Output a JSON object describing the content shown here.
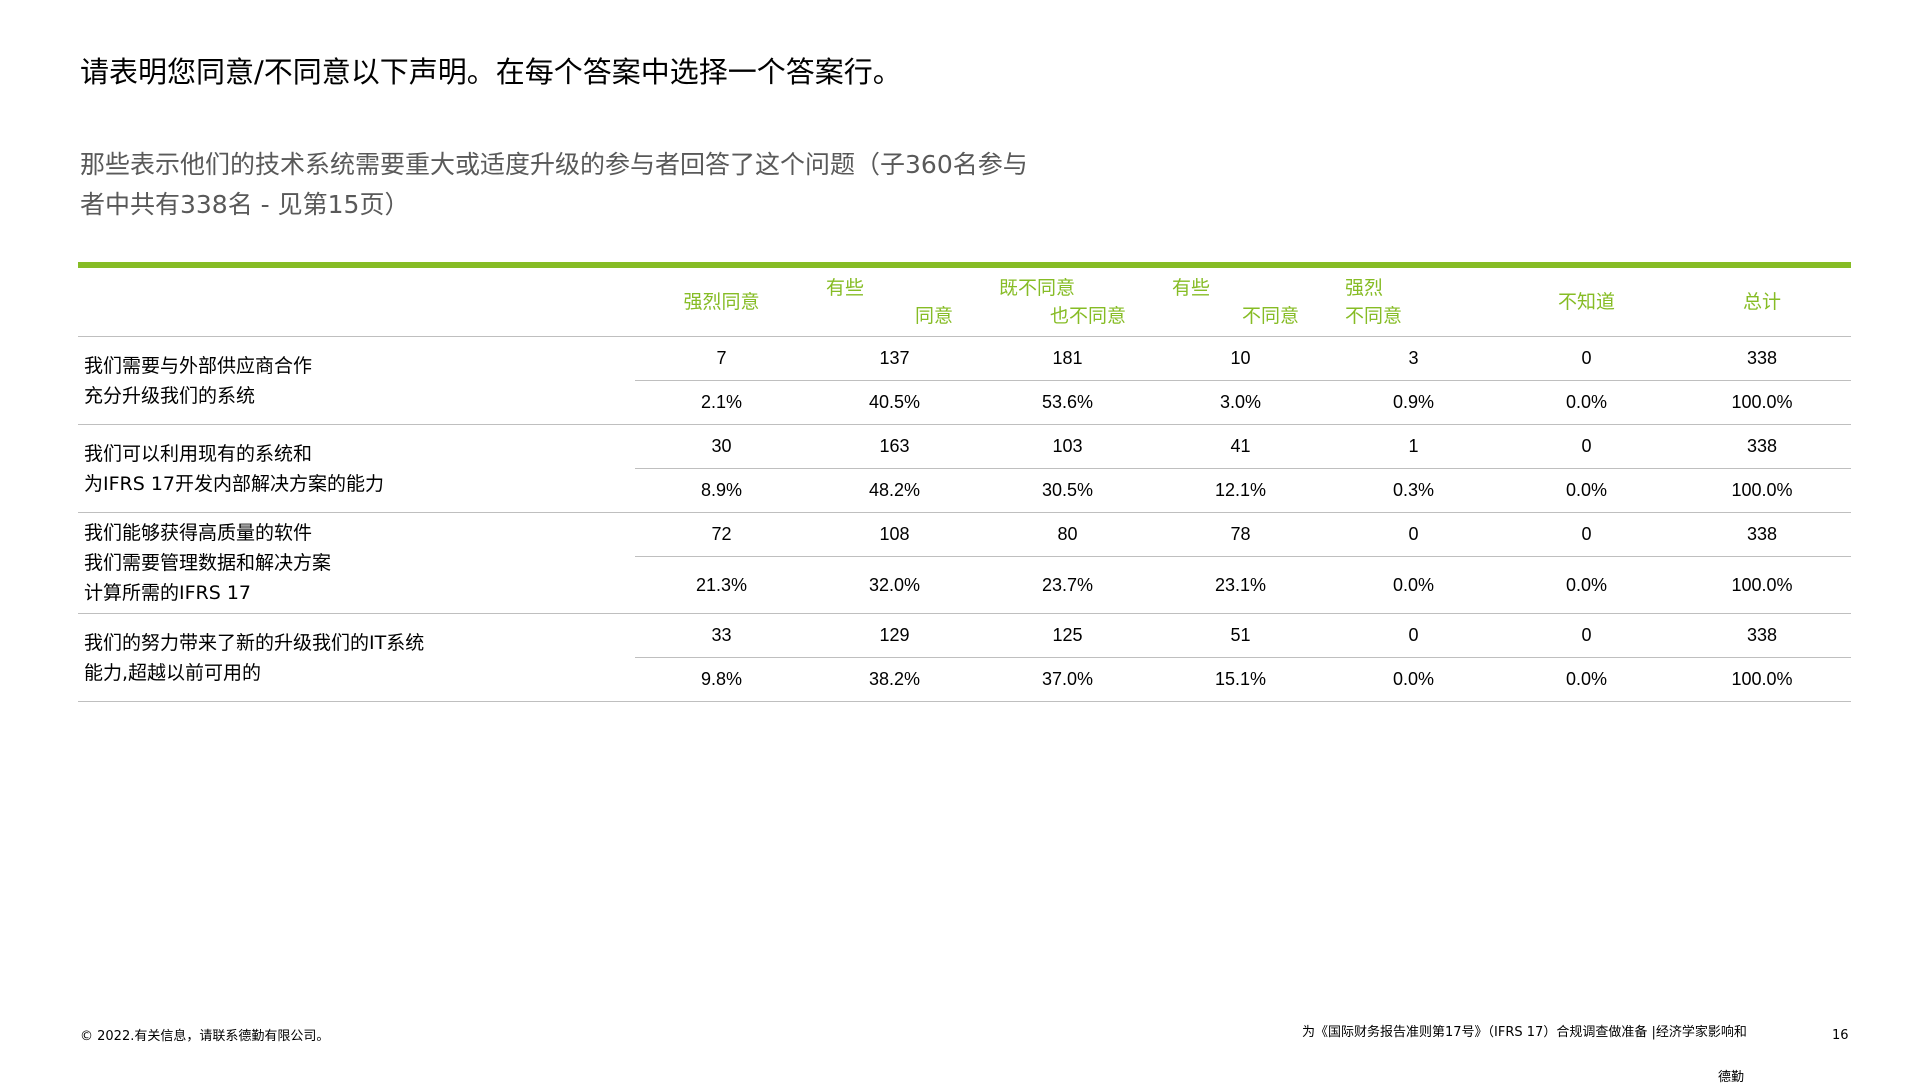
{
  "title": "请表明您同意/不同意以下声明。在每个答案中选择一个答案行。",
  "subtitle": "那些表示他们的技术系统需要重大或适度升级的参与者回答了这个问题（子360名参与者中共有338名 - 见第15页）",
  "table": {
    "headers": [
      {
        "lines": [
          "强烈同意"
        ],
        "style": "single"
      },
      {
        "lines": [
          "有些",
          "同意"
        ],
        "style": "stag"
      },
      {
        "lines": [
          "既不同意",
          "也不同意"
        ],
        "style": "stag"
      },
      {
        "lines": [
          "有些",
          "不同意"
        ],
        "style": "stag"
      },
      {
        "lines": [
          "强烈",
          "不同意"
        ],
        "style": "stag2"
      },
      {
        "lines": [
          "不知道"
        ],
        "style": "single"
      },
      {
        "lines": [
          "总计"
        ],
        "style": "single"
      }
    ],
    "rows": [
      {
        "label": [
          "我们需要与外部供应商合作",
          "充分升级我们的系统"
        ],
        "counts": [
          "7",
          "137",
          "181",
          "10",
          "3",
          "0",
          "338"
        ],
        "percents": [
          "2.1%",
          "40.5%",
          "53.6%",
          "3.0%",
          "0.9%",
          "0.0%",
          "100.0%"
        ]
      },
      {
        "label": [
          "我们可以利用现有的系统和",
          "为IFRS 17开发内部解决方案的能力"
        ],
        "counts": [
          "30",
          "163",
          "103",
          "41",
          "1",
          "0",
          "338"
        ],
        "percents": [
          "8.9%",
          "48.2%",
          "30.5%",
          "12.1%",
          "0.3%",
          "0.0%",
          "100.0%"
        ]
      },
      {
        "label": [
          "我们能够获得高质量的软件",
          "我们需要管理数据和解决方案",
          "计算所需的IFRS 17"
        ],
        "counts": [
          "72",
          "108",
          "80",
          "78",
          "0",
          "0",
          "338"
        ],
        "percents": [
          "21.3%",
          "32.0%",
          "23.7%",
          "23.1%",
          "0.0%",
          "0.0%",
          "100.0%"
        ]
      },
      {
        "label": [
          "我们的努力带来了新的升级我们的IT系统",
          "能力,超越以前可用的"
        ],
        "counts": [
          "33",
          "129",
          "125",
          "51",
          "0",
          "0",
          "338"
        ],
        "percents": [
          "9.8%",
          "38.2%",
          "37.0%",
          "15.1%",
          "0.0%",
          "0.0%",
          "100.0%"
        ]
      }
    ]
  },
  "footer": {
    "copyright": "© 2022.有关信息，请联系德勤有限公司。",
    "report_title": "为《国际财务报告准则第17号》（IFRS 17）合规调查做准备 |经济学家影响和",
    "brand": "德勤",
    "page": "16"
  },
  "colors": {
    "accent": "#86bc25",
    "subtitle": "#595959",
    "rule": "#bfbfbf"
  }
}
